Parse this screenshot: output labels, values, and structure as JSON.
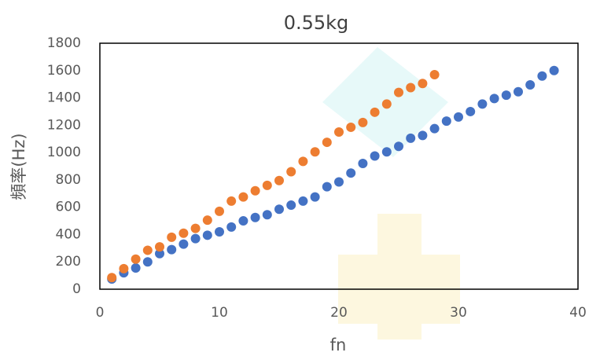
{
  "chart_data": {
    "type": "scatter",
    "title": "0.55kg",
    "x_label": "fn",
    "y_label": "頻率(Hz)",
    "xlim": [
      0,
      40
    ],
    "xticks": [
      0,
      10,
      20,
      30,
      40
    ],
    "ylim": [
      0,
      1800
    ],
    "yticks": [
      0,
      200,
      400,
      600,
      800,
      1000,
      1200,
      1400,
      1600,
      1800
    ],
    "grid": false,
    "series": [
      {
        "color": "#4472c4",
        "x": [
          1,
          2,
          3,
          4,
          5,
          6,
          7,
          8,
          9,
          10,
          11,
          12,
          13,
          14,
          15,
          16,
          17,
          18,
          19,
          20,
          21,
          22,
          23,
          24,
          25,
          26,
          27,
          28,
          29,
          30,
          31,
          32,
          33,
          34,
          35,
          36,
          37,
          38
        ],
        "values": [
          75,
          120,
          155,
          200,
          260,
          290,
          330,
          370,
          395,
          420,
          455,
          500,
          525,
          545,
          585,
          615,
          645,
          675,
          750,
          785,
          850,
          920,
          975,
          1005,
          1045,
          1105,
          1125,
          1175,
          1230,
          1260,
          1300,
          1355,
          1395,
          1420,
          1445,
          1495,
          1560,
          1600
        ]
      },
      {
        "color": "#ed7d31",
        "x": [
          1,
          2,
          3,
          4,
          5,
          6,
          7,
          8,
          9,
          10,
          11,
          12,
          13,
          14,
          15,
          16,
          17,
          18,
          19,
          20,
          21,
          22,
          23,
          24,
          25,
          26,
          27,
          28
        ],
        "values": [
          85,
          150,
          220,
          285,
          310,
          380,
          410,
          445,
          505,
          570,
          645,
          675,
          720,
          760,
          795,
          860,
          935,
          1005,
          1075,
          1150,
          1185,
          1220,
          1295,
          1355,
          1440,
          1475,
          1505,
          1570
        ]
      }
    ]
  }
}
